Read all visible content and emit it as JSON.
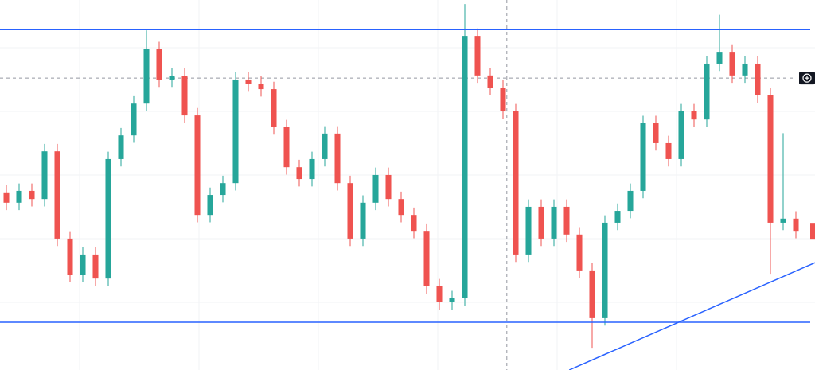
{
  "chart_data": {
    "type": "candlestick",
    "ylim": [
      0,
      100
    ],
    "xlim": [
      -0.5,
      63.5
    ],
    "up_color": "#26a69a",
    "down_color": "#ef5350",
    "line_color": "#2962ff",
    "open": [
      48.0,
      45.2,
      48.4,
      46.2,
      59.1,
      35.5,
      25.8,
      31.2,
      24.7,
      57.0,
      63.4,
      72.0,
      86.7,
      78.5,
      79.5,
      68.8,
      41.9,
      47.3,
      50.5,
      78.5,
      77.4,
      75.9,
      65.6,
      54.8,
      51.6,
      57.0,
      63.9,
      50.5,
      35.5,
      45.2,
      52.7,
      46.2,
      41.9,
      37.6,
      22.6,
      18.3,
      19.4,
      90.3,
      79.6,
      76.3,
      69.9,
      31.2,
      44.1,
      35.5,
      44.1,
      36.6,
      26.9,
      14.0,
      39.8,
      43.0,
      48.4,
      66.7,
      61.3,
      57.0,
      69.9,
      67.7,
      82.8,
      86.0,
      79.6,
      82.8,
      74.2,
      39.8,
      40.9
    ],
    "high": [
      50.0,
      50.4,
      50.4,
      61.1,
      61.1,
      37.5,
      33.2,
      33.2,
      59.0,
      65.4,
      74.0,
      91.8,
      88.7,
      81.5,
      81.5,
      70.8,
      49.3,
      52.5,
      80.5,
      80.5,
      79.4,
      77.9,
      67.6,
      56.8,
      59.0,
      65.9,
      65.9,
      52.5,
      47.2,
      54.7,
      54.7,
      48.2,
      43.9,
      39.6,
      24.6,
      21.4,
      98.9,
      92.3,
      81.6,
      78.3,
      71.9,
      46.1,
      46.1,
      46.1,
      46.1,
      38.6,
      28.9,
      41.8,
      45.0,
      50.4,
      68.7,
      68.7,
      63.3,
      71.9,
      71.9,
      84.8,
      96.0,
      88.0,
      84.8,
      84.8,
      76.2,
      64.0,
      42.9
    ],
    "low": [
      43.2,
      43.2,
      44.2,
      44.2,
      33.5,
      23.8,
      23.8,
      22.7,
      22.7,
      55.0,
      61.4,
      70.0,
      76.5,
      76.5,
      66.8,
      39.9,
      39.9,
      45.3,
      48.5,
      75.4,
      73.9,
      63.6,
      52.8,
      49.6,
      49.6,
      55.0,
      48.5,
      33.5,
      33.5,
      43.2,
      44.2,
      39.9,
      35.6,
      20.6,
      16.3,
      16.3,
      17.4,
      77.6,
      74.3,
      67.9,
      29.2,
      29.2,
      33.5,
      33.5,
      34.6,
      24.9,
      6.0,
      12.0,
      37.8,
      41.0,
      46.4,
      59.3,
      55.0,
      55.0,
      65.7,
      65.7,
      80.8,
      77.6,
      77.6,
      72.2,
      26.0,
      37.8,
      35.6
    ],
    "close": [
      45.2,
      48.4,
      46.2,
      59.1,
      35.5,
      25.8,
      31.2,
      24.7,
      57.0,
      63.4,
      72.0,
      86.7,
      78.5,
      79.5,
      68.8,
      41.9,
      47.3,
      50.5,
      78.5,
      77.4,
      75.9,
      65.6,
      54.8,
      51.6,
      57.0,
      63.9,
      50.5,
      35.5,
      45.2,
      52.7,
      46.2,
      41.9,
      37.6,
      22.6,
      18.3,
      19.4,
      90.3,
      79.6,
      76.3,
      69.9,
      31.2,
      44.1,
      35.5,
      44.1,
      36.6,
      26.9,
      14.0,
      39.8,
      43.0,
      48.4,
      66.7,
      61.3,
      57.0,
      69.9,
      67.7,
      82.8,
      86.0,
      79.6,
      82.8,
      74.2,
      39.8,
      40.9,
      37.6
    ],
    "horizontal_lines": [
      92.0,
      12.9
    ],
    "trend_line": {
      "x": [
        44.2,
        63.5
      ],
      "values": [
        0,
        29.0
      ]
    },
    "crosshair": {
      "x": 39.3,
      "value": 78.9
    }
  }
}
